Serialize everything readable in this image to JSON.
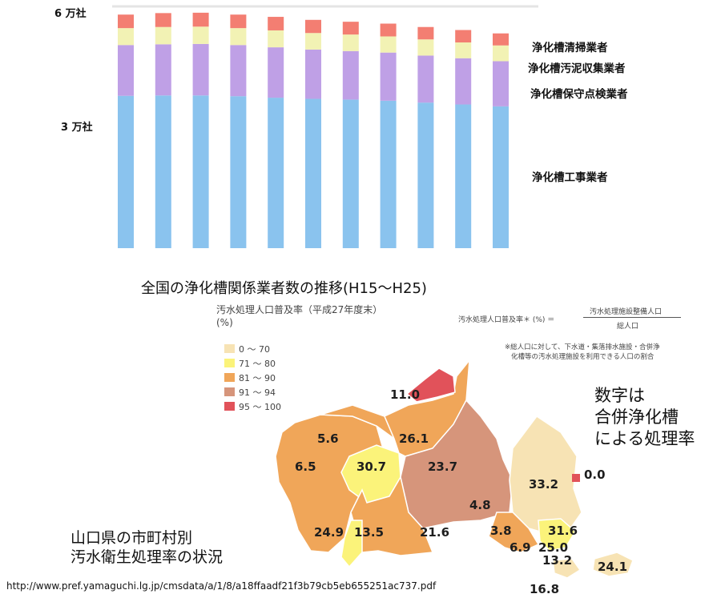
{
  "chart_data": {
    "type": "bar",
    "stacked": true,
    "title": "全国の浄化槽関係業者数の推移(H15～H25)",
    "categories": [
      "",
      "",
      "",
      "",
      "",
      "",
      "",
      "",
      "",
      "",
      ""
    ],
    "series": [
      {
        "name": "浄化槽工事業者",
        "color": "#8ac3ee",
        "values": [
          40500,
          40600,
          40600,
          40400,
          40000,
          39700,
          39500,
          39200,
          38700,
          38200,
          37700
        ]
      },
      {
        "name": "浄化槽保守点検業者",
        "color": "#bfa0e6",
        "values": [
          13500,
          13600,
          13700,
          13600,
          13400,
          13100,
          12900,
          12800,
          12500,
          12300,
          12000
        ]
      },
      {
        "name": "浄化槽汚泥収集業者",
        "color": "#f2f2b4",
        "values": [
          4500,
          4600,
          4600,
          4500,
          4500,
          4400,
          4400,
          4300,
          4300,
          4200,
          4200
        ]
      },
      {
        "name": "浄化槽清掃業者",
        "color": "#f37e72",
        "values": [
          3600,
          3700,
          3700,
          3600,
          3600,
          3500,
          3400,
          3400,
          3300,
          3300,
          3200
        ]
      }
    ],
    "y_ticks": [
      "6 万社",
      "3 万社"
    ],
    "ylim": [
      0,
      63000
    ]
  },
  "map": {
    "title": "汚水処理人口普及率（平成27年度末）",
    "unit": "(%)",
    "formula_left": "汚水処理人口普及率＊ (%)  ＝",
    "formula_num": "汚水処理施設整備人口",
    "formula_den": "総人口",
    "note_line1": "※総人口に対して、下水道・集落排水施設・合併浄",
    "note_line2": "化槽等の汚水処理施設を利用できる人口の割合",
    "legend": [
      {
        "label": "0 ～ 70",
        "color": "#f7e3b4"
      },
      {
        "label": "71 ～ 80",
        "color": "#fbf37a"
      },
      {
        "label": "81 ～ 90",
        "color": "#f0a659"
      },
      {
        "label": "91 ～ 94",
        "color": "#d6957b"
      },
      {
        "label": "95 ～ 100",
        "color": "#e1525a"
      }
    ],
    "values": [
      "11.0",
      "5.6",
      "26.1",
      "6.5",
      "30.7",
      "23.7",
      "33.2",
      "0.0",
      "4.8",
      "24.9",
      "13.5",
      "21.6",
      "3.8",
      "31.6",
      "6.9",
      "25.0",
      "13.2",
      "24.1",
      "16.8"
    ]
  },
  "side_note": [
    "数字は",
    "合併浄化槽",
    "による処理率"
  ],
  "bottom_caption": [
    "山口県の市町村別",
    "汚水衛生処理率の状況"
  ],
  "source_url": "http://www.pref.yamaguchi.lg.jp/cmsdata/a/1/8/a18ffaadf21f3b79cb5eb655251ac737.pdf"
}
